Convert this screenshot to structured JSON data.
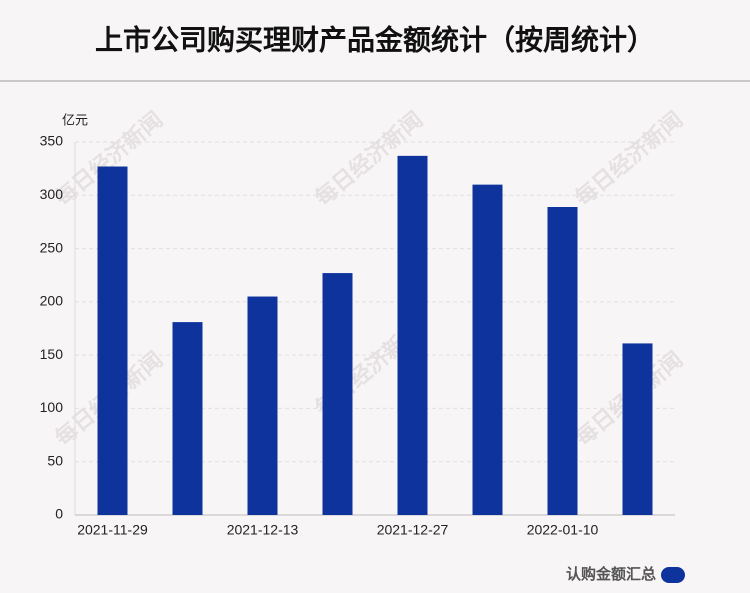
{
  "chart_data": {
    "type": "bar",
    "title": "上市公司购买理财产品金额统计（按周统计）",
    "y_unit": "亿元",
    "watermark": "每日经济新闻",
    "categories": [
      "2021-11-29",
      null,
      "2021-12-13",
      null,
      "2021-12-27",
      null,
      "2022-01-10",
      null
    ],
    "series": [
      {
        "name": "认购金额汇总",
        "color": "#0e339d",
        "values": [
          327,
          181,
          205,
          227,
          337,
          310,
          289,
          161
        ]
      }
    ],
    "ylim": [
      0,
      350
    ],
    "yticks": [
      0,
      50,
      100,
      150,
      200,
      250,
      300,
      350
    ],
    "grid": true
  }
}
